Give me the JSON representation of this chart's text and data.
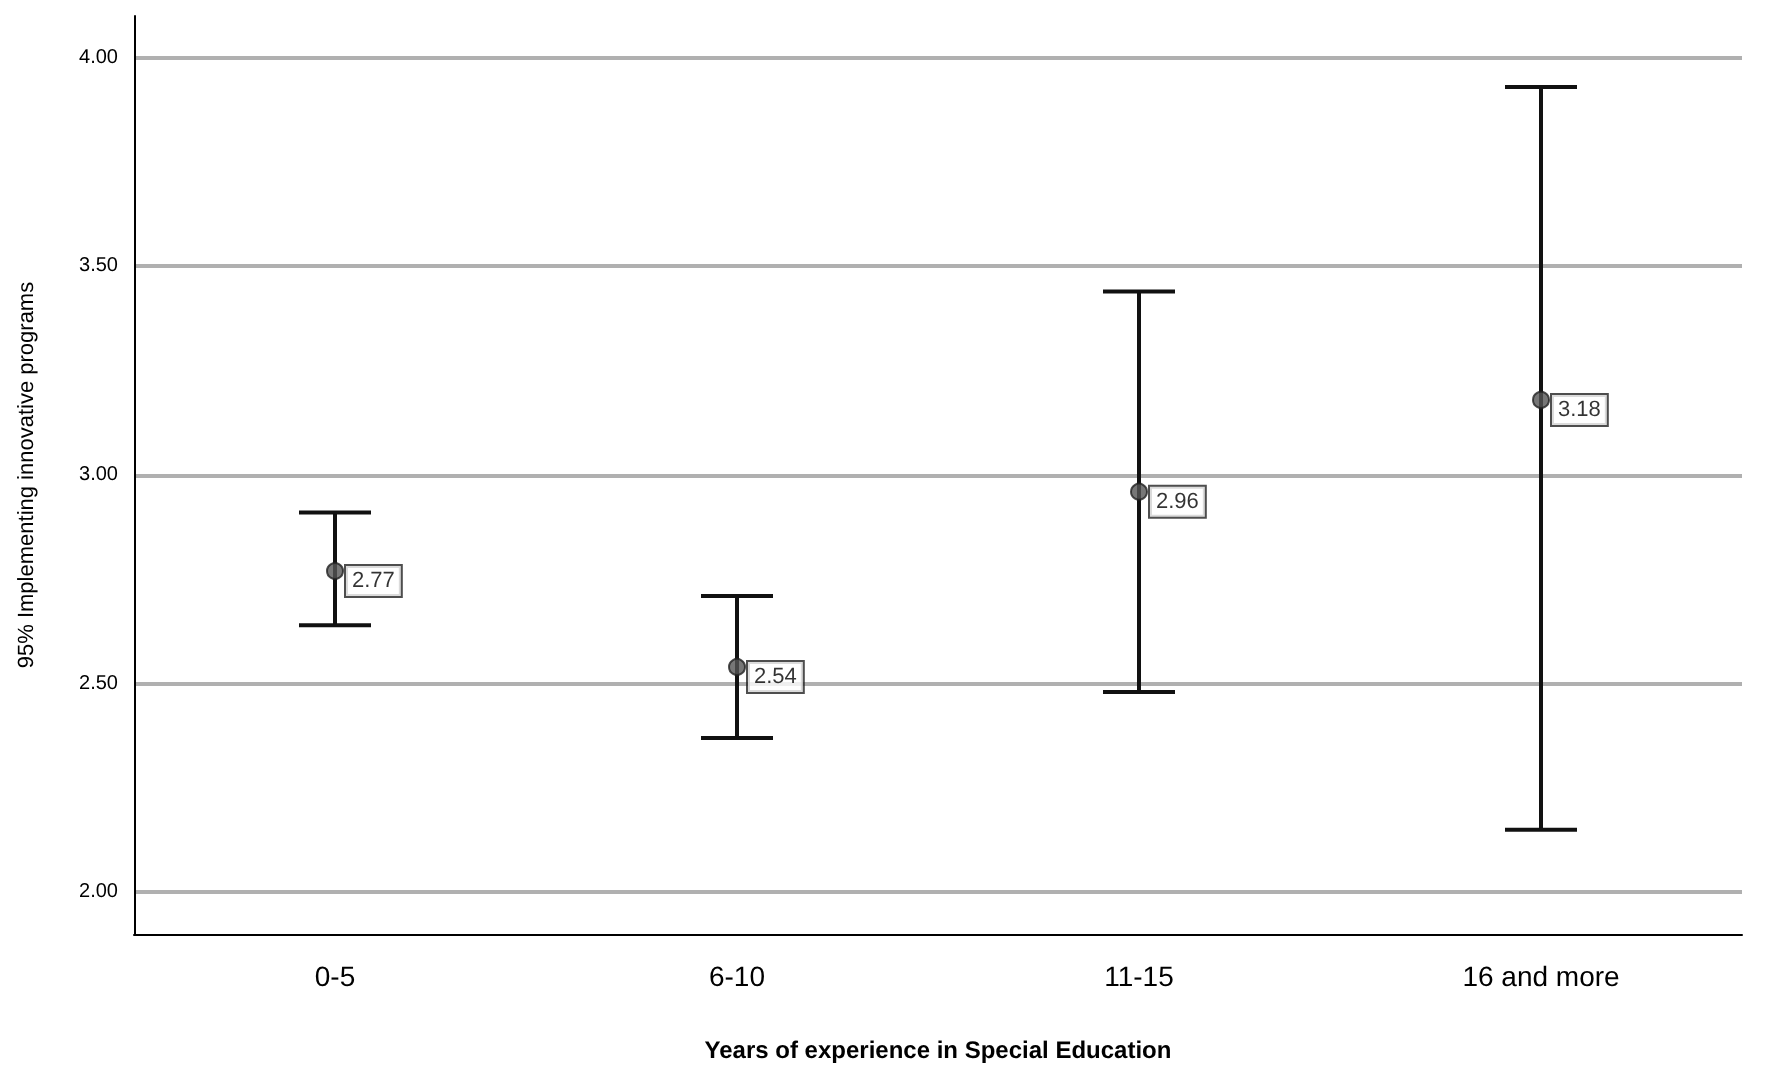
{
  "chart_data": {
    "type": "scatter",
    "xlabel": "Years of experience in Special Education",
    "ylabel": "95% Implementing innovative programs",
    "categories": [
      "0-5",
      "6-10",
      "11-15",
      "16 and more"
    ],
    "values": [
      2.77,
      2.54,
      2.96,
      3.18
    ],
    "errors": [
      [
        2.64,
        2.91
      ],
      [
        2.37,
        2.71
      ],
      [
        2.48,
        3.44
      ],
      [
        2.15,
        3.93
      ]
    ],
    "color": "#555555",
    "marker": "circle",
    "data_labels": true,
    "ylim": [
      1.9,
      4.1
    ],
    "yticks": [
      {
        "value": 2,
        "label": "2.00"
      },
      {
        "value": 2.5,
        "label": "2.50"
      },
      {
        "value": 3,
        "label": "3.00"
      },
      {
        "value": 3.5,
        "label": "3.50"
      },
      {
        "value": 4,
        "label": "4.00"
      }
    ],
    "grid": "y"
  }
}
